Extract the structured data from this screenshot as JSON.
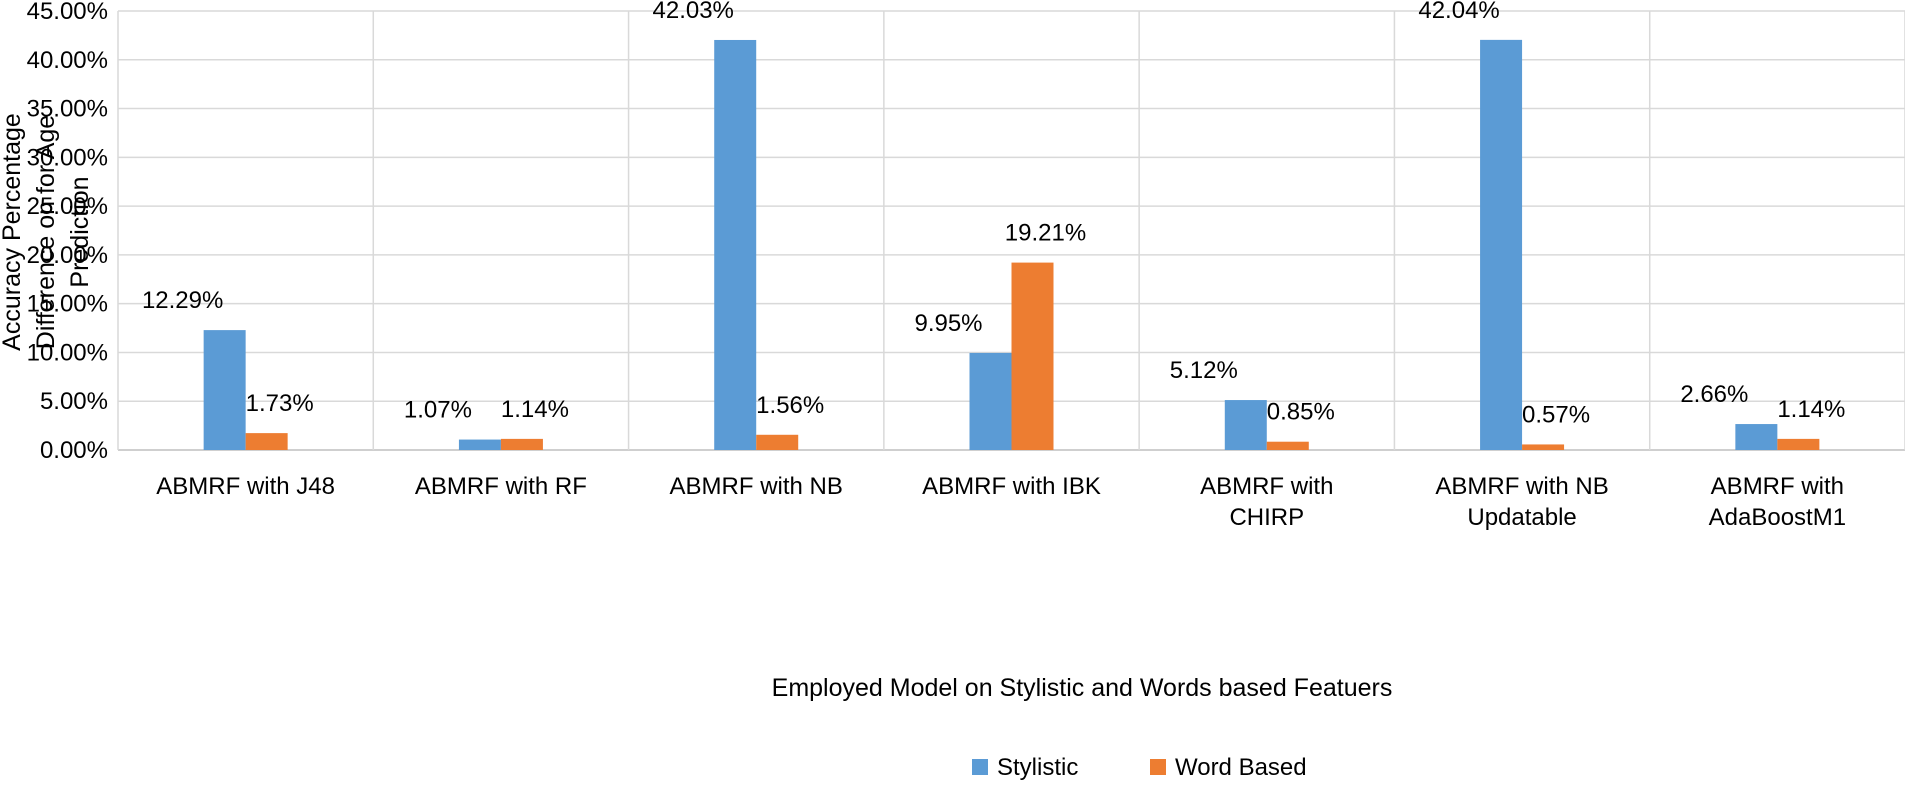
{
  "chart_data": {
    "type": "bar",
    "title": "",
    "xlabel": "Employed Model on Stylistic and Words based Featuers",
    "ylabel_lines": [
      "Accuracy Percentage",
      "Difference on for Age",
      "Prediction"
    ],
    "ylim": [
      0,
      45
    ],
    "ytick_step": 5,
    "yticks": [
      "0.00%",
      "5.00%",
      "10.00%",
      "15.00%",
      "20.00%",
      "25.00%",
      "30.00%",
      "35.00%",
      "40.00%",
      "45.00%"
    ],
    "grid": true,
    "legend_position": "bottom",
    "categories": [
      [
        "ABMRF with J48"
      ],
      [
        "ABMRF with RF"
      ],
      [
        "ABMRF with NB"
      ],
      [
        "ABMRF with IBK"
      ],
      [
        "ABMRF with",
        "CHIRP"
      ],
      [
        "ABMRF with NB",
        "Updatable"
      ],
      [
        "ABMRF with",
        "AdaBoostM1"
      ]
    ],
    "series": [
      {
        "name": "Stylistic",
        "color": "#5B9BD5",
        "values": [
          12.29,
          1.07,
          42.03,
          9.95,
          5.12,
          42.04,
          2.66
        ],
        "labels": [
          "12.29%",
          "1.07%",
          "42.03%",
          "9.95%",
          "5.12%",
          "42.04%",
          "2.66%"
        ]
      },
      {
        "name": "Word Based",
        "color": "#ED7D31",
        "values": [
          1.73,
          1.14,
          1.56,
          19.21,
          0.85,
          0.57,
          1.14
        ],
        "labels": [
          "1.73%",
          "1.14%",
          "1.56%",
          "19.21%",
          "0.85%",
          "0.57%",
          "1.14%"
        ]
      }
    ],
    "gridline_color": "#D9D9D9"
  }
}
